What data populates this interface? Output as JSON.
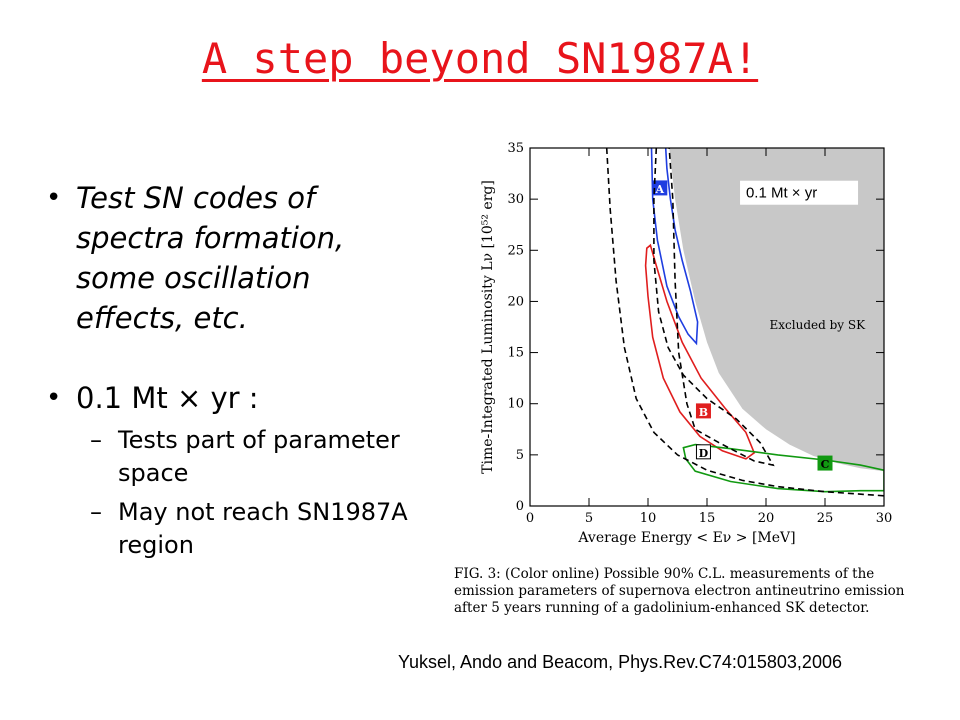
{
  "slide": {
    "title": "A step beyond SN1987A!",
    "bullets": [
      {
        "text": "Test SN codes of spectra formation, some oscillation effects, etc."
      },
      {
        "text": "0.1 Mt × yr :",
        "sub": [
          "Tests part of parameter space",
          "May not reach SN1987A region"
        ]
      }
    ],
    "bullet_glyph": "•",
    "sub_glyph": "–",
    "caption": "FIG. 3: (Color online) Possible 90% C.L. measurements of the emission parameters of supernova electron antineutrino emission after 5 years running of a gadolinium-enhanced SK detector.",
    "citation": "Yuksel, Ando and Beacom, Phys.Rev.C74:015803,2006"
  },
  "chart_data": {
    "type": "line",
    "xlabel": "Average Energy  < Eν >  [MeV]",
    "ylabel": "Time-Integrated Luminosity  Lν  [10⁵² erg]",
    "xlim": [
      0,
      30
    ],
    "ylim": [
      0,
      35
    ],
    "xticks": [
      "0",
      "5",
      "10",
      "15",
      "20",
      "25",
      "30"
    ],
    "yticks": [
      "0",
      "5",
      "10",
      "15",
      "20",
      "25",
      "30",
      "35"
    ],
    "annotation_inset": "0.1 Mt × yr",
    "annotation_region": "Excluded by SK",
    "colors": {
      "excluded": "#c8c8c8",
      "A": "#1f3ee0",
      "B": "#e01e1e",
      "C": "#119911",
      "D": "#000000"
    },
    "excluded_region": {
      "x": [
        11.8,
        12.3,
        13,
        14,
        15,
        16,
        18,
        20,
        22,
        24,
        26,
        28,
        30,
        30,
        11.8
      ],
      "y": [
        35,
        30,
        25,
        20,
        16,
        13,
        9.5,
        7.5,
        6,
        4.9,
        4.2,
        3.7,
        3.4,
        35,
        35
      ]
    },
    "series": [
      {
        "name": "A",
        "label_pos": [
          11,
          31
        ],
        "x": [
          10.3,
          10.4,
          10.8,
          11.6,
          12.6,
          13.4,
          14.1,
          14.2,
          13.6,
          12.9,
          12.3,
          11.9,
          11.6,
          11.5
        ],
        "y": [
          35,
          30,
          26,
          21.5,
          18.5,
          16.8,
          15.9,
          18,
          21,
          24,
          27,
          30,
          33,
          35
        ]
      },
      {
        "name": "B",
        "label_pos": [
          14.7,
          9.2
        ],
        "x": [
          10.2,
          10.7,
          11.6,
          12.9,
          14.5,
          16.5,
          18.3,
          19.0,
          18.3,
          16.3,
          14.4,
          12.7,
          11.3,
          10.4,
          10.0,
          9.8,
          9.9,
          10.2
        ],
        "y": [
          25.5,
          23.5,
          20,
          16,
          12.5,
          9.6,
          7.2,
          5.2,
          4.6,
          5.4,
          6.8,
          9.2,
          12.5,
          16.5,
          20.5,
          23.5,
          25.2,
          25.5
        ],
        "closed": true
      },
      {
        "name": "C",
        "label_pos": [
          25,
          4.1
        ],
        "x": [
          13,
          14,
          17,
          21,
          25,
          28,
          30,
          30,
          28,
          25,
          21,
          17,
          14,
          13.2,
          13
        ],
        "y": [
          5.7,
          6.0,
          5.6,
          5.0,
          4.5,
          4.0,
          3.5,
          1.5,
          1.5,
          1.4,
          1.7,
          2.4,
          3.4,
          4.6,
          5.7
        ],
        "closed": true
      },
      {
        "name": "D",
        "label_pos": [
          14.7,
          5.2
        ],
        "x": [
          10.7,
          10.5,
          10.5,
          10.9,
          11.7,
          13.0,
          15.0,
          17.5,
          19.5,
          20.6,
          19.0,
          16.0,
          14.0,
          13.3,
          12.6,
          12.3,
          12.1,
          11.8
        ],
        "y": [
          35,
          30,
          24,
          19,
          15.5,
          12.8,
          10.5,
          8.5,
          6.2,
          4.0,
          4.4,
          6.2,
          7.5,
          10,
          15,
          22,
          30,
          35
        ],
        "dashed": true
      },
      {
        "name": "",
        "x": [
          6.5,
          6.8,
          7.3,
          8.0,
          9.0,
          10.5,
          12.5,
          15.0,
          18.0,
          21.0,
          25,
          30
        ],
        "y": [
          35,
          29,
          22,
          15.5,
          10.5,
          7.2,
          5.0,
          3.5,
          2.5,
          1.9,
          1.4,
          1.0
        ],
        "dashed": true
      }
    ]
  }
}
